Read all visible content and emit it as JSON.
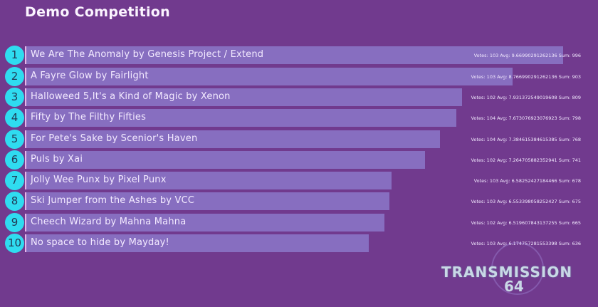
{
  "title": "Demo Competition",
  "colors": {
    "background": "#713a8e",
    "bar": "#876ec0",
    "badge": "#2fdcf0"
  },
  "entries": [
    {
      "rank": "1",
      "name": "We Are The Anomaly by Genesis Project / Extend",
      "stats": "Votes: 103 Avg: 9.66990291262136 Sum: 996",
      "sum": 996
    },
    {
      "rank": "2",
      "name": "A Fayre Glow by Fairlight",
      "stats": "Votes: 103 Avg: 8.766990291262136 Sum: 903",
      "sum": 903
    },
    {
      "rank": "3",
      "name": "Halloweed 5,It's a Kind of Magic by Xenon",
      "stats": "Votes: 102 Avg: 7.931372549019608 Sum: 809",
      "sum": 809
    },
    {
      "rank": "4",
      "name": "Fifty by The Filthy Fifties",
      "stats": "Votes: 104 Avg: 7.673076923076923 Sum: 798",
      "sum": 798
    },
    {
      "rank": "5",
      "name": "For Pete's Sake by Scenior's Haven",
      "stats": "Votes: 104 Avg: 7.384615384615385 Sum: 768",
      "sum": 768
    },
    {
      "rank": "6",
      "name": "Puls by Xai",
      "stats": "Votes: 102 Avg: 7.264705882352941 Sum: 741",
      "sum": 741
    },
    {
      "rank": "7",
      "name": "Jolly Wee Punx by Pixel Punx",
      "stats": "Votes: 103 Avg: 6.58252427184466 Sum: 678",
      "sum": 678
    },
    {
      "rank": "8",
      "name": "Ski Jumper from the Ashes by VCC",
      "stats": "Votes: 103 Avg: 6.553398058252427 Sum: 675",
      "sum": 675
    },
    {
      "rank": "9",
      "name": "Cheech Wizard by Mahna Mahna",
      "stats": "Votes: 102 Avg: 6.519607843137255 Sum: 665",
      "sum": 665
    },
    {
      "rank": "10",
      "name": "No space to hide by Mayday!",
      "stats": "Votes: 103 Avg: 6.174757281553398 Sum: 636",
      "sum": 636
    }
  ],
  "logo": {
    "word": "TRANSMISSION",
    "number": "64"
  }
}
